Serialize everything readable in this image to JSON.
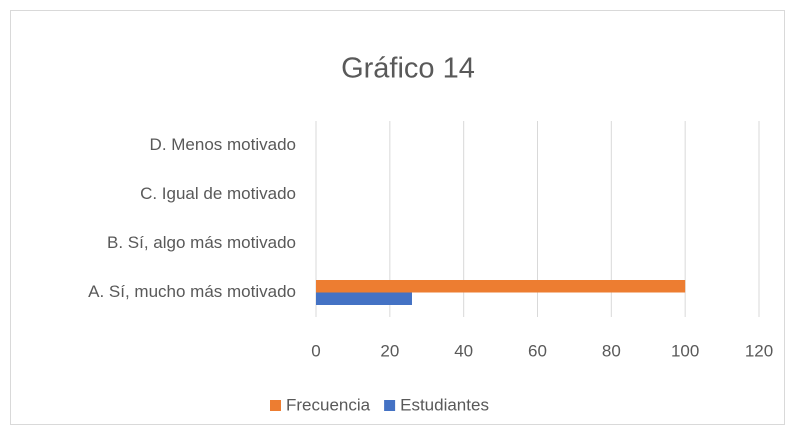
{
  "chart_data": {
    "type": "bar",
    "orientation": "horizontal",
    "title": "Gráfico 14",
    "categories": [
      "A. Sí, mucho más motivado",
      "B. Sí, algo más motivado",
      "C. Igual de motivado",
      "D. Menos motivado"
    ],
    "series": [
      {
        "name": "Frecuencia",
        "color": "#ed7d31",
        "values": [
          100,
          0,
          0,
          0
        ]
      },
      {
        "name": "Estudiantes",
        "color": "#4472c4",
        "values": [
          26,
          0,
          0,
          0
        ]
      }
    ],
    "xlim": [
      0,
      120
    ],
    "xticks": [
      0,
      20,
      40,
      60,
      80,
      100,
      120
    ],
    "grid": true,
    "legend": "bottom"
  }
}
